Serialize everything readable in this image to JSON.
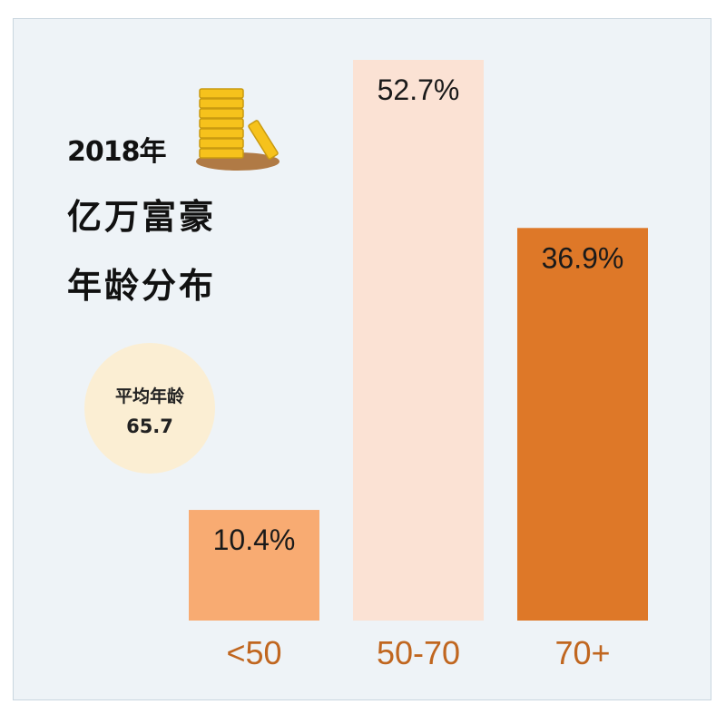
{
  "header": {
    "year": "2018年",
    "line2": "亿万富豪",
    "line3": "年龄分布"
  },
  "average": {
    "label": "平均年龄",
    "value": "65.7"
  },
  "icons": {
    "coins": "coin-stack-icon"
  },
  "colors": {
    "background": "#eef3f7",
    "circle": "#fbeed3",
    "category_label": "#c0661f"
  },
  "chart_data": {
    "type": "bar",
    "categories": [
      "<50",
      "50-70",
      "70+"
    ],
    "values": [
      10.4,
      52.7,
      36.9
    ],
    "value_labels": [
      "10.4%",
      "52.7%",
      "36.9%"
    ],
    "colors": [
      "#f8ab72",
      "#fbe2d4",
      "#de7828"
    ],
    "ylim": [
      0,
      52.7
    ],
    "grid": false
  }
}
